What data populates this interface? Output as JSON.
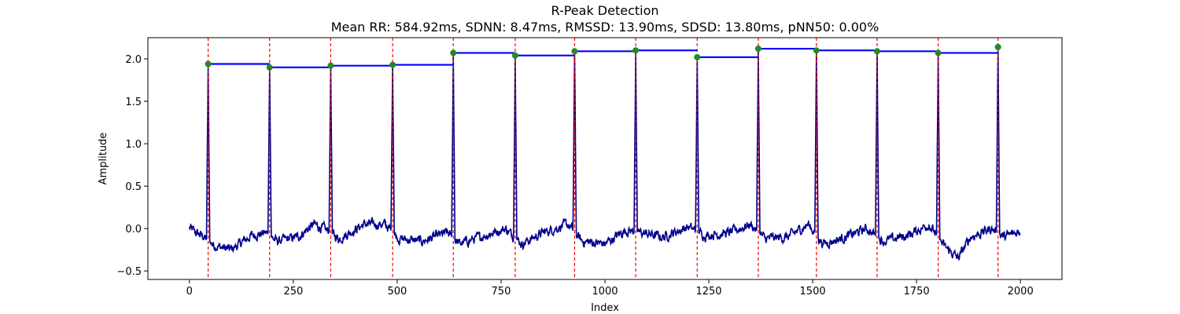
{
  "chart_data": {
    "type": "line",
    "title": "R-Peak Detection",
    "subtitle": "Mean RR: 584.92ms, SDNN: 8.47ms, RMSSD: 13.90ms, SDSD: 13.80ms, pNN50: 0.00%",
    "xlabel": "Index",
    "ylabel": "Amplitude",
    "xlim": [
      -100,
      2100
    ],
    "ylim": [
      -0.6,
      2.25
    ],
    "x_ticks": [
      0,
      250,
      500,
      750,
      1000,
      1250,
      1500,
      1750,
      2000
    ],
    "y_ticks": [
      -0.5,
      0.0,
      0.5,
      1.0,
      1.5,
      2.0
    ],
    "x_tick_labels": [
      "0",
      "250",
      "500",
      "750",
      "1000",
      "1250",
      "1500",
      "1750",
      "2000"
    ],
    "y_tick_labels": [
      "−0.5",
      "0.0",
      "0.5",
      "1.0",
      "1.5",
      "2.0"
    ],
    "grid": false,
    "signal_length": 2000,
    "peaks": [
      {
        "x": 45,
        "y": 1.94
      },
      {
        "x": 193,
        "y": 1.9
      },
      {
        "x": 340,
        "y": 1.92
      },
      {
        "x": 489,
        "y": 1.93
      },
      {
        "x": 635,
        "y": 2.07
      },
      {
        "x": 784,
        "y": 2.04
      },
      {
        "x": 927,
        "y": 2.09
      },
      {
        "x": 1074,
        "y": 2.1
      },
      {
        "x": 1222,
        "y": 2.02
      },
      {
        "x": 1369,
        "y": 2.12
      },
      {
        "x": 1509,
        "y": 2.1
      },
      {
        "x": 1655,
        "y": 2.09
      },
      {
        "x": 1802,
        "y": 2.07
      },
      {
        "x": 1946,
        "y": 2.14
      }
    ],
    "baseline_profile": [
      {
        "x": 0,
        "y": 0.01
      },
      {
        "x": 15,
        "y": -0.05
      },
      {
        "x": 30,
        "y": -0.08
      },
      {
        "x": 60,
        "y": -0.2
      },
      {
        "x": 100,
        "y": -0.25
      },
      {
        "x": 150,
        "y": -0.08
      },
      {
        "x": 185,
        "y": -0.05
      },
      {
        "x": 210,
        "y": -0.15
      },
      {
        "x": 260,
        "y": -0.1
      },
      {
        "x": 300,
        "y": 0.05
      },
      {
        "x": 330,
        "y": -0.02
      },
      {
        "x": 360,
        "y": -0.12
      },
      {
        "x": 420,
        "y": 0.05
      },
      {
        "x": 470,
        "y": 0.05
      },
      {
        "x": 505,
        "y": -0.12
      },
      {
        "x": 560,
        "y": -0.15
      },
      {
        "x": 620,
        "y": -0.05
      },
      {
        "x": 650,
        "y": -0.18
      },
      {
        "x": 700,
        "y": -0.1
      },
      {
        "x": 760,
        "y": 0.0
      },
      {
        "x": 800,
        "y": -0.18
      },
      {
        "x": 850,
        "y": -0.05
      },
      {
        "x": 910,
        "y": 0.05
      },
      {
        "x": 945,
        "y": -0.15
      },
      {
        "x": 1000,
        "y": -0.18
      },
      {
        "x": 1050,
        "y": -0.02
      },
      {
        "x": 1090,
        "y": -0.05
      },
      {
        "x": 1140,
        "y": -0.1
      },
      {
        "x": 1200,
        "y": 0.02
      },
      {
        "x": 1240,
        "y": -0.08
      },
      {
        "x": 1300,
        "y": -0.05
      },
      {
        "x": 1350,
        "y": 0.05
      },
      {
        "x": 1385,
        "y": -0.12
      },
      {
        "x": 1440,
        "y": -0.1
      },
      {
        "x": 1490,
        "y": 0.05
      },
      {
        "x": 1525,
        "y": -0.18
      },
      {
        "x": 1580,
        "y": -0.1
      },
      {
        "x": 1630,
        "y": 0.0
      },
      {
        "x": 1670,
        "y": -0.15
      },
      {
        "x": 1730,
        "y": -0.08
      },
      {
        "x": 1780,
        "y": 0.05
      },
      {
        "x": 1815,
        "y": -0.2
      },
      {
        "x": 1850,
        "y": -0.35
      },
      {
        "x": 1880,
        "y": -0.1
      },
      {
        "x": 1930,
        "y": 0.0
      },
      {
        "x": 1960,
        "y": -0.1
      },
      {
        "x": 2000,
        "y": -0.03
      }
    ],
    "colors": {
      "signal": "#00008b",
      "peak_marker": "#228b22",
      "peak_line": "#ff0000",
      "rr_line": "#0000ff"
    }
  }
}
